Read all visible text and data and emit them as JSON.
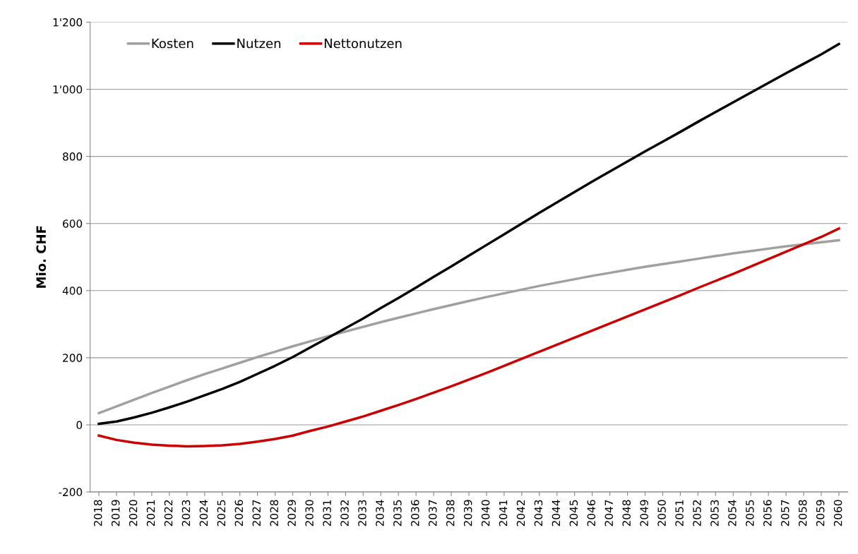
{
  "chart_data": {
    "type": "line",
    "ylabel": "Mio. CHF",
    "categories": [
      "2018",
      "2019",
      "2020",
      "2021",
      "2022",
      "2023",
      "2024",
      "2025",
      "2026",
      "2027",
      "2028",
      "2029",
      "2030",
      "2031",
      "2032",
      "2033",
      "2034",
      "2035",
      "2036",
      "2037",
      "2038",
      "2039",
      "2040",
      "2041",
      "2042",
      "2043",
      "2044",
      "2045",
      "2046",
      "2047",
      "2048",
      "2049",
      "2050",
      "2051",
      "2052",
      "2053",
      "2054",
      "2055",
      "2056",
      "2057",
      "2058",
      "2059",
      "2060"
    ],
    "series": [
      {
        "name": "Kosten",
        "color": "#a0a0a0",
        "values": [
          35,
          55,
          75,
          95,
          114,
          133,
          151,
          168,
          185,
          202,
          218,
          234,
          249,
          264,
          278,
          292,
          306,
          319,
          332,
          345,
          357,
          369,
          381,
          392,
          403,
          414,
          424,
          434,
          444,
          453,
          462,
          471,
          479,
          487,
          495,
          503,
          511,
          518,
          525,
          532,
          538,
          544,
          550
        ]
      },
      {
        "name": "Nutzen",
        "color": "#000000",
        "values": [
          3,
          10,
          22,
          36,
          52,
          69,
          88,
          107,
          128,
          152,
          176,
          202,
          231,
          259,
          288,
          317,
          348,
          378,
          409,
          441,
          472,
          504,
          536,
          568,
          600,
          632,
          663,
          694,
          725,
          755,
          785,
          815,
          844,
          873,
          903,
          932,
          961,
          990,
          1019,
          1048,
          1076,
          1104,
          1135
        ]
      },
      {
        "name": "Nettonutzen",
        "color": "#cc0000",
        "values": [
          -32,
          -45,
          -53,
          -59,
          -62,
          -64,
          -63,
          -61,
          -57,
          -50,
          -42,
          -32,
          -18,
          -5,
          10,
          25,
          42,
          59,
          77,
          96,
          115,
          135,
          155,
          176,
          197,
          218,
          239,
          260,
          281,
          302,
          323,
          344,
          365,
          386,
          408,
          429,
          450,
          472,
          494,
          516,
          538,
          560,
          585
        ]
      }
    ],
    "ylim": [
      -200,
      1200
    ],
    "yticks": [
      -200,
      0,
      200,
      400,
      600,
      800,
      {
        "value": 1000,
        "label": "1'000"
      },
      {
        "value": 1200,
        "label": "1'200"
      }
    ],
    "grid": "y",
    "legend": "top left",
    "marker": "none",
    "line_style": "solid"
  }
}
